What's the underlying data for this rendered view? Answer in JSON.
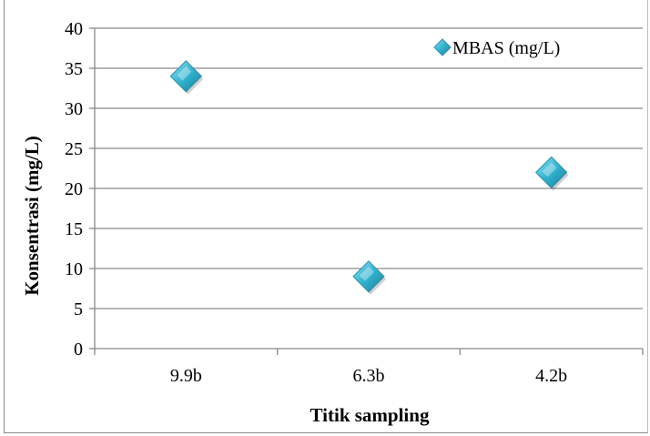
{
  "chart_data": {
    "type": "scatter",
    "categories": [
      "9.9b",
      "6.3b",
      "4.2b"
    ],
    "series": [
      {
        "name": "MBAS  (mg/L)",
        "values": [
          34,
          9,
          22
        ],
        "color": "#31b3cf",
        "marker": "diamond"
      }
    ],
    "xlabel": "Titik sampling",
    "ylabel": "Konsentrasi (mg/L)",
    "ylim": [
      0,
      40
    ],
    "yticks": [
      0,
      5,
      10,
      15,
      20,
      25,
      30,
      35,
      40
    ],
    "grid": true,
    "legend_position": "top-right"
  }
}
